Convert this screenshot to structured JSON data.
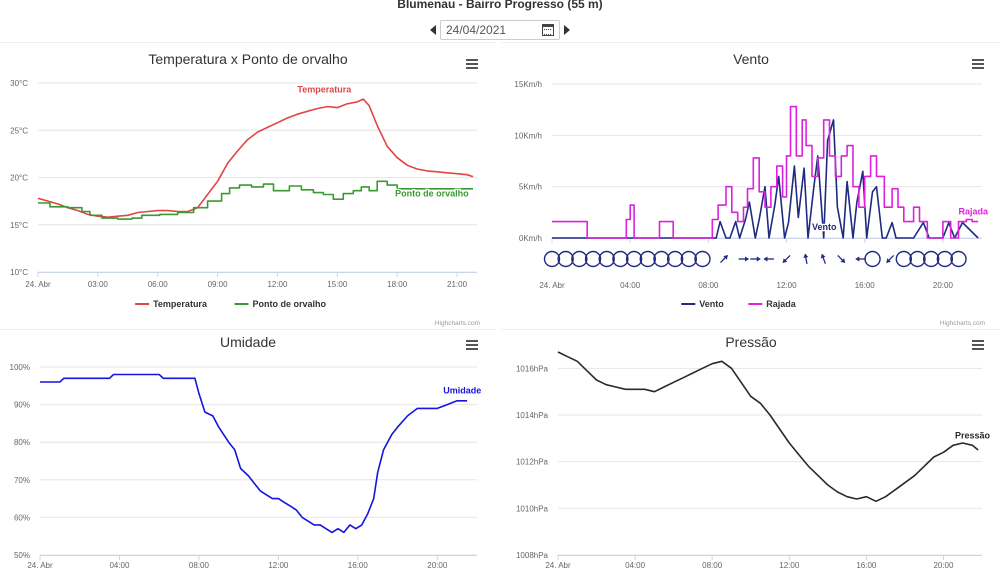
{
  "page": {
    "title": "Blumenau - Bairro Progresso (55 m)",
    "date": "24/04/2021",
    "credits": "Highcharts.com"
  },
  "chart_data": [
    {
      "id": "temp",
      "type": "line",
      "title": "Temperatura x Ponto de orvalho",
      "x_range": [
        0,
        22
      ],
      "x_ticks": [
        {
          "v": 0,
          "label": "24. Abr"
        },
        {
          "v": 3,
          "label": "03:00"
        },
        {
          "v": 6,
          "label": "06:00"
        },
        {
          "v": 9,
          "label": "09:00"
        },
        {
          "v": 12,
          "label": "12:00"
        },
        {
          "v": 15,
          "label": "15:00"
        },
        {
          "v": 18,
          "label": "18:00"
        },
        {
          "v": 21,
          "label": "21:00"
        }
      ],
      "y_range": [
        10,
        30
      ],
      "y_ticks": [
        {
          "v": 10,
          "label": "10°C"
        },
        {
          "v": 15,
          "label": "15°C"
        },
        {
          "v": 20,
          "label": "20°C"
        },
        {
          "v": 25,
          "label": "25°C"
        },
        {
          "v": 30,
          "label": "30°C"
        }
      ],
      "grid": true,
      "legend": "bottom-center",
      "series": [
        {
          "name": "Temperatura",
          "color": "#e04646",
          "label": "Temperatura",
          "label_at": [
            13.0,
            29.0
          ],
          "x": [
            0,
            0.5,
            1,
            1.5,
            2,
            2.5,
            3,
            3.5,
            4,
            4.5,
            5,
            5.5,
            6,
            6.5,
            7,
            7.5,
            8,
            8.5,
            9,
            9.5,
            10,
            10.5,
            11,
            11.5,
            12,
            12.5,
            13,
            13.5,
            14,
            14.5,
            15,
            15.5,
            16,
            16.3,
            16.6,
            17,
            17.5,
            18,
            18.5,
            19,
            19.5,
            20,
            20.5,
            21,
            21.5,
            21.8
          ],
          "y": [
            17.8,
            17.5,
            17.2,
            16.8,
            16.5,
            16.1,
            15.9,
            15.8,
            15.9,
            16.0,
            16.3,
            16.4,
            16.5,
            16.5,
            16.4,
            16.4,
            16.8,
            18.2,
            19.6,
            21.5,
            22.8,
            24.0,
            24.8,
            25.3,
            25.8,
            26.3,
            26.7,
            27.0,
            27.3,
            27.5,
            27.4,
            27.8,
            28.0,
            28.3,
            27.6,
            25.5,
            23.3,
            22.1,
            21.3,
            20.9,
            20.7,
            20.6,
            20.5,
            20.4,
            20.3,
            20.1
          ]
        },
        {
          "name": "Ponto de orvalho",
          "color": "#3a9a32",
          "label": "Ponto de orvalho",
          "label_at": [
            17.9,
            18.0
          ],
          "step": true,
          "x": [
            0,
            0.6,
            1.5,
            2.2,
            2.6,
            3.2,
            4.0,
            4.7,
            5.2,
            6.1,
            7.0,
            7.8,
            8.5,
            9.2,
            9.6,
            10.1,
            10.7,
            11.3,
            11.8,
            12.6,
            13.2,
            13.8,
            14.3,
            14.8,
            15.3,
            15.8,
            16.2,
            16.6,
            17.0,
            17.5,
            18.0,
            21.8
          ],
          "y": [
            17.3,
            16.9,
            16.8,
            16.4,
            16.0,
            15.7,
            15.6,
            15.7,
            16.0,
            16.1,
            16.3,
            16.8,
            17.5,
            18.3,
            18.9,
            19.2,
            19.0,
            19.3,
            18.6,
            19.1,
            18.7,
            18.4,
            18.2,
            17.7,
            18.3,
            18.6,
            19.0,
            18.6,
            19.6,
            19.2,
            18.8,
            18.8
          ]
        }
      ]
    },
    {
      "id": "wind",
      "type": "line",
      "title": "Vento",
      "x_range": [
        0,
        22
      ],
      "x_ticks": [
        {
          "v": 0,
          "label": "24. Abr"
        },
        {
          "v": 4,
          "label": "04:00"
        },
        {
          "v": 8,
          "label": "08:00"
        },
        {
          "v": 12,
          "label": "12:00"
        },
        {
          "v": 16,
          "label": "16:00"
        },
        {
          "v": 20,
          "label": "20:00"
        }
      ],
      "y_range": [
        0,
        15
      ],
      "y_ticks": [
        {
          "v": 0,
          "label": "0Km/h"
        },
        {
          "v": 5,
          "label": "5Km/h"
        },
        {
          "v": 10,
          "label": "10Km/h"
        },
        {
          "v": 15,
          "label": "15Km/h"
        }
      ],
      "grid": true,
      "legend": "bottom-center",
      "series": [
        {
          "name": "Vento",
          "color": "#1f2a80",
          "label": "Vento",
          "label_at": [
            13.3,
            0.8
          ],
          "x": [
            0,
            8.0,
            8.4,
            8.6,
            8.9,
            9.1,
            9.4,
            9.6,
            9.9,
            10.1,
            10.4,
            10.6,
            10.9,
            11.1,
            11.4,
            11.6,
            11.9,
            12.1,
            12.4,
            12.6,
            12.9,
            13.1,
            13.4,
            13.6,
            13.9,
            14.1,
            14.4,
            14.6,
            14.9,
            15.1,
            15.4,
            15.6,
            15.9,
            16.1,
            16.4,
            16.6,
            16.9,
            17.1,
            17.4,
            17.6,
            17.9,
            18.5,
            19.0,
            19.3,
            19.6,
            20.0,
            20.3,
            20.6,
            21.0,
            21.8
          ],
          "y": [
            0,
            0,
            0,
            1.6,
            0,
            0,
            1.6,
            0,
            1.8,
            3.5,
            0,
            1.8,
            5.0,
            0,
            3.2,
            6.0,
            0,
            1.5,
            7.0,
            2.0,
            6.8,
            0,
            5.0,
            8.0,
            0,
            9.5,
            11.5,
            3.0,
            0,
            5.5,
            0,
            3.5,
            6.5,
            0,
            4.5,
            5.0,
            0,
            0,
            1.5,
            0,
            0,
            0,
            1.5,
            0,
            0,
            0,
            1.5,
            0,
            1.5,
            0
          ]
        },
        {
          "name": "Rajada",
          "color": "#dd22dd",
          "label": "Rajada",
          "label_at": [
            20.8,
            2.3
          ],
          "step": true,
          "x": [
            0,
            1.6,
            1.8,
            3.6,
            3.8,
            4.0,
            4.2,
            5.3,
            5.5,
            6.0,
            6.2,
            7.9,
            8.2,
            8.5,
            8.9,
            9.2,
            9.5,
            9.8,
            10.0,
            10.3,
            10.6,
            10.9,
            11.2,
            11.5,
            11.8,
            12.0,
            12.2,
            12.5,
            12.8,
            13.0,
            13.3,
            13.6,
            13.9,
            14.2,
            14.5,
            14.8,
            15.1,
            15.4,
            15.7,
            16.0,
            16.3,
            16.6,
            17.0,
            17.4,
            17.7,
            18.0,
            18.5,
            18.8,
            19.2,
            19.6,
            20.0,
            20.4,
            20.8,
            21.2,
            21.5,
            21.8
          ],
          "y": [
            1.6,
            1.6,
            0,
            0,
            1.8,
            3.2,
            0,
            0,
            1.6,
            1.6,
            0,
            0,
            1.8,
            3.2,
            5.0,
            2.5,
            1.6,
            3.0,
            4.8,
            7.8,
            4.5,
            3.0,
            5.0,
            7.0,
            4.0,
            8.0,
            12.8,
            8.0,
            11.5,
            9.0,
            6.0,
            7.8,
            11.5,
            8.0,
            6.0,
            8.0,
            9.0,
            5.0,
            3.0,
            6.0,
            8.0,
            6.0,
            3.0,
            4.8,
            3.0,
            1.6,
            3.0,
            1.6,
            0,
            0,
            1.6,
            0,
            1.6,
            1.8,
            1.6,
            1.6
          ]
        }
      ],
      "direction_markers": [
        {
          "x": 0.0,
          "type": "calm"
        },
        {
          "x": 0.7,
          "type": "calm"
        },
        {
          "x": 1.4,
          "type": "calm"
        },
        {
          "x": 2.1,
          "type": "calm"
        },
        {
          "x": 2.8,
          "type": "calm"
        },
        {
          "x": 3.5,
          "type": "calm"
        },
        {
          "x": 4.2,
          "type": "calm"
        },
        {
          "x": 4.9,
          "type": "calm"
        },
        {
          "x": 5.6,
          "type": "calm"
        },
        {
          "x": 6.3,
          "type": "calm"
        },
        {
          "x": 7.0,
          "type": "calm"
        },
        {
          "x": 7.7,
          "type": "calm"
        },
        {
          "x": 8.8,
          "type": "arrow",
          "angle": 225
        },
        {
          "x": 9.8,
          "type": "arrow",
          "angle": 270
        },
        {
          "x": 10.4,
          "type": "arrow",
          "angle": 270
        },
        {
          "x": 11.1,
          "type": "arrow",
          "angle": 90
        },
        {
          "x": 12.0,
          "type": "arrow",
          "angle": 45
        },
        {
          "x": 13.0,
          "type": "arrow",
          "angle": 170
        },
        {
          "x": 13.9,
          "type": "arrow",
          "angle": 160
        },
        {
          "x": 14.8,
          "type": "arrow",
          "angle": 315
        },
        {
          "x": 15.8,
          "type": "arrow",
          "angle": 90
        },
        {
          "x": 16.4,
          "type": "calm"
        },
        {
          "x": 17.3,
          "type": "arrow",
          "angle": 45
        },
        {
          "x": 18.0,
          "type": "calm"
        },
        {
          "x": 18.7,
          "type": "calm"
        },
        {
          "x": 19.4,
          "type": "calm"
        },
        {
          "x": 20.1,
          "type": "calm"
        },
        {
          "x": 20.8,
          "type": "calm"
        }
      ]
    },
    {
      "id": "hum",
      "type": "line",
      "title": "Umidade",
      "x_range": [
        0,
        22
      ],
      "x_ticks": [
        {
          "v": 0,
          "label": "24. Abr"
        },
        {
          "v": 4,
          "label": "04:00"
        },
        {
          "v": 8,
          "label": "08:00"
        },
        {
          "v": 12,
          "label": "12:00"
        },
        {
          "v": 16,
          "label": "16:00"
        },
        {
          "v": 20,
          "label": "20:00"
        }
      ],
      "y_range": [
        50,
        100
      ],
      "y_ticks": [
        {
          "v": 50,
          "label": "50%"
        },
        {
          "v": 60,
          "label": "60%"
        },
        {
          "v": 70,
          "label": "70%"
        },
        {
          "v": 80,
          "label": "80%"
        },
        {
          "v": 90,
          "label": "90%"
        },
        {
          "v": 100,
          "label": "100%"
        }
      ],
      "grid": true,
      "series": [
        {
          "name": "Umidade",
          "color": "#1515dd",
          "label": "Umidade",
          "label_at": [
            20.3,
            93.0
          ],
          "x": [
            0,
            1.0,
            1.2,
            3.0,
            3.5,
            3.7,
            4.0,
            6.0,
            6.2,
            7.8,
            8.0,
            8.3,
            8.7,
            9.0,
            9.5,
            9.8,
            10.1,
            10.5,
            10.8,
            11.1,
            11.4,
            11.7,
            12.0,
            12.3,
            12.6,
            12.9,
            13.2,
            13.5,
            13.8,
            14.1,
            14.4,
            14.7,
            15.0,
            15.3,
            15.6,
            15.9,
            16.2,
            16.5,
            16.8,
            17.0,
            17.3,
            17.7,
            18.0,
            18.5,
            19.0,
            19.5,
            20.0,
            20.5,
            21.0,
            21.5
          ],
          "y": [
            96,
            96,
            97,
            97,
            97,
            98,
            98,
            98,
            97,
            97,
            93,
            88,
            87,
            84,
            80,
            78,
            73,
            71,
            69,
            67,
            66,
            65,
            65,
            64,
            63,
            62,
            60,
            59,
            58,
            58,
            57,
            56,
            57,
            56,
            58,
            57,
            58,
            61,
            65,
            72,
            78,
            82,
            84,
            87,
            89,
            89,
            89,
            90,
            91,
            91
          ]
        }
      ]
    },
    {
      "id": "press",
      "type": "line",
      "title": "Pressão",
      "x_range": [
        0,
        22
      ],
      "x_ticks": [
        {
          "v": 0,
          "label": "24. Abr"
        },
        {
          "v": 4,
          "label": "04:00"
        },
        {
          "v": 8,
          "label": "08:00"
        },
        {
          "v": 12,
          "label": "12:00"
        },
        {
          "v": 16,
          "label": "16:00"
        },
        {
          "v": 20,
          "label": "20:00"
        }
      ],
      "y_range": [
        1008,
        1017
      ],
      "y_ticks": [
        {
          "v": 1008,
          "label": "1008hPa"
        },
        {
          "v": 1010,
          "label": "1010hPa"
        },
        {
          "v": 1012,
          "label": "1012hPa"
        },
        {
          "v": 1014,
          "label": "1014hPa"
        },
        {
          "v": 1016,
          "label": "1016hPa"
        }
      ],
      "grid": true,
      "series": [
        {
          "name": "Pressão",
          "color": "#2a2a2a",
          "label": "Pressão",
          "label_at": [
            20.6,
            1013.0
          ],
          "x": [
            0,
            0.5,
            1.0,
            1.5,
            2.0,
            2.5,
            3.0,
            3.5,
            4.0,
            4.5,
            5.0,
            5.5,
            6.0,
            6.5,
            7.0,
            7.5,
            8.0,
            8.5,
            9.0,
            9.5,
            10.0,
            10.5,
            11.0,
            11.5,
            12.0,
            12.5,
            13.0,
            13.5,
            14.0,
            14.5,
            15.0,
            15.5,
            16.0,
            16.5,
            17.0,
            17.5,
            18.0,
            18.5,
            19.0,
            19.5,
            20.0,
            20.5,
            21.0,
            21.5,
            21.8
          ],
          "y": [
            1016.7,
            1016.5,
            1016.3,
            1015.9,
            1015.5,
            1015.3,
            1015.2,
            1015.1,
            1015.1,
            1015.1,
            1015.0,
            1015.2,
            1015.4,
            1015.6,
            1015.8,
            1016.0,
            1016.2,
            1016.3,
            1016.0,
            1015.4,
            1014.8,
            1014.5,
            1014.0,
            1013.4,
            1012.8,
            1012.3,
            1011.8,
            1011.4,
            1011.0,
            1010.7,
            1010.5,
            1010.4,
            1010.5,
            1010.3,
            1010.5,
            1010.8,
            1011.1,
            1011.4,
            1011.8,
            1012.2,
            1012.4,
            1012.7,
            1012.8,
            1012.7,
            1012.5
          ]
        }
      ]
    }
  ]
}
